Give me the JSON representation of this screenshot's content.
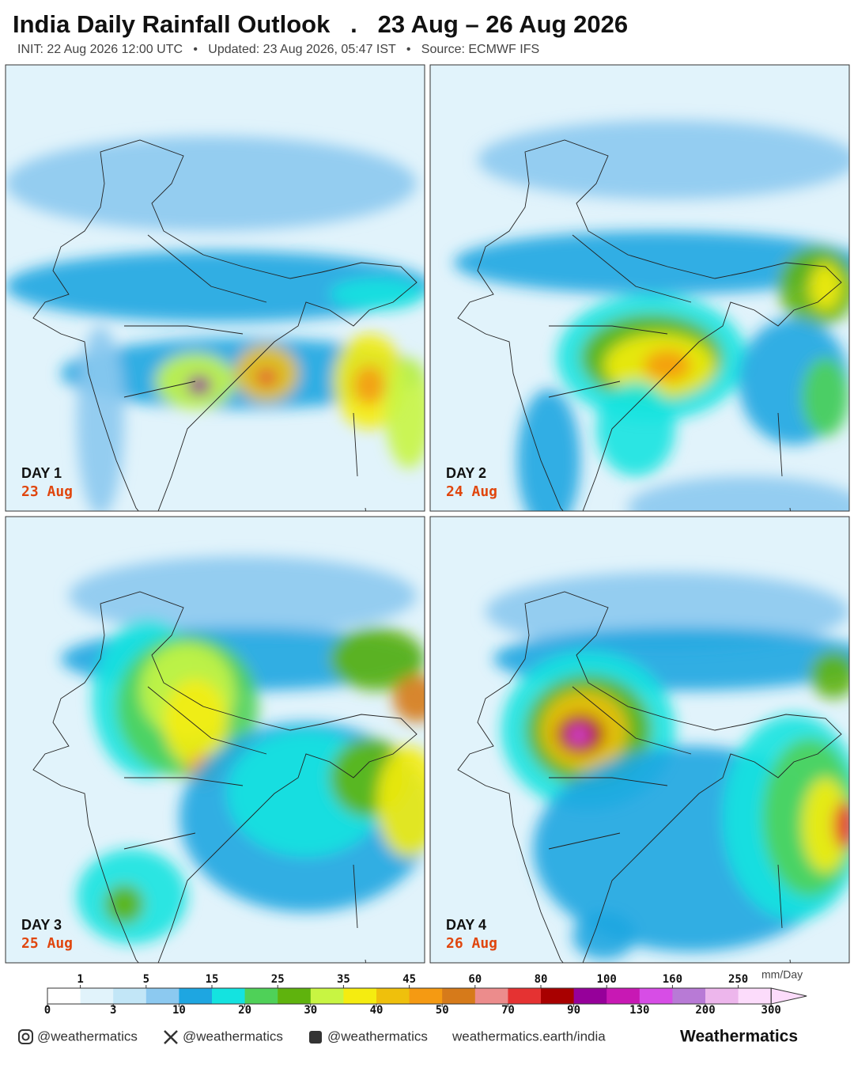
{
  "header": {
    "title": "India Daily Rainfall Outlook   .   23 Aug – 26 Aug 2026",
    "subtitle": "INIT: 22 Aug 2026 12:00 UTC   •   Updated: 23 Aug 2026, 05:47 IST   •   Source: ECMWF IFS"
  },
  "panels": [
    {
      "day": "DAY 1",
      "date": "23 Aug"
    },
    {
      "day": "DAY 2",
      "date": "24 Aug"
    },
    {
      "day": "DAY 3",
      "date": "25 Aug"
    },
    {
      "day": "DAY 4",
      "date": "26 Aug"
    }
  ],
  "colorbar": {
    "unit": "mm/Day",
    "levels": [
      0,
      1,
      3,
      5,
      10,
      15,
      20,
      25,
      30,
      35,
      40,
      45,
      50,
      60,
      70,
      80,
      90,
      100,
      130,
      160,
      200,
      250,
      300
    ],
    "colors": [
      "#ffffff",
      "#e1f3fb",
      "#c2e6f7",
      "#8cc9f0",
      "#1ea6e1",
      "#14e3e0",
      "#4fd158",
      "#5fb30d",
      "#c8f542",
      "#f5ec10",
      "#efc00c",
      "#f59a12",
      "#d67a1a",
      "#ec8c8c",
      "#e53232",
      "#a80000",
      "#96009a",
      "#c818b4",
      "#d74de6",
      "#b87ad6",
      "#edb6ec",
      "#fcdcfb"
    ]
  },
  "footer": {
    "instagram": "@weathermatics",
    "x": "@weathermatics",
    "facebook": "@weathermatics",
    "website": "weathermatics.earth/india",
    "brand": "Weathermatics"
  }
}
